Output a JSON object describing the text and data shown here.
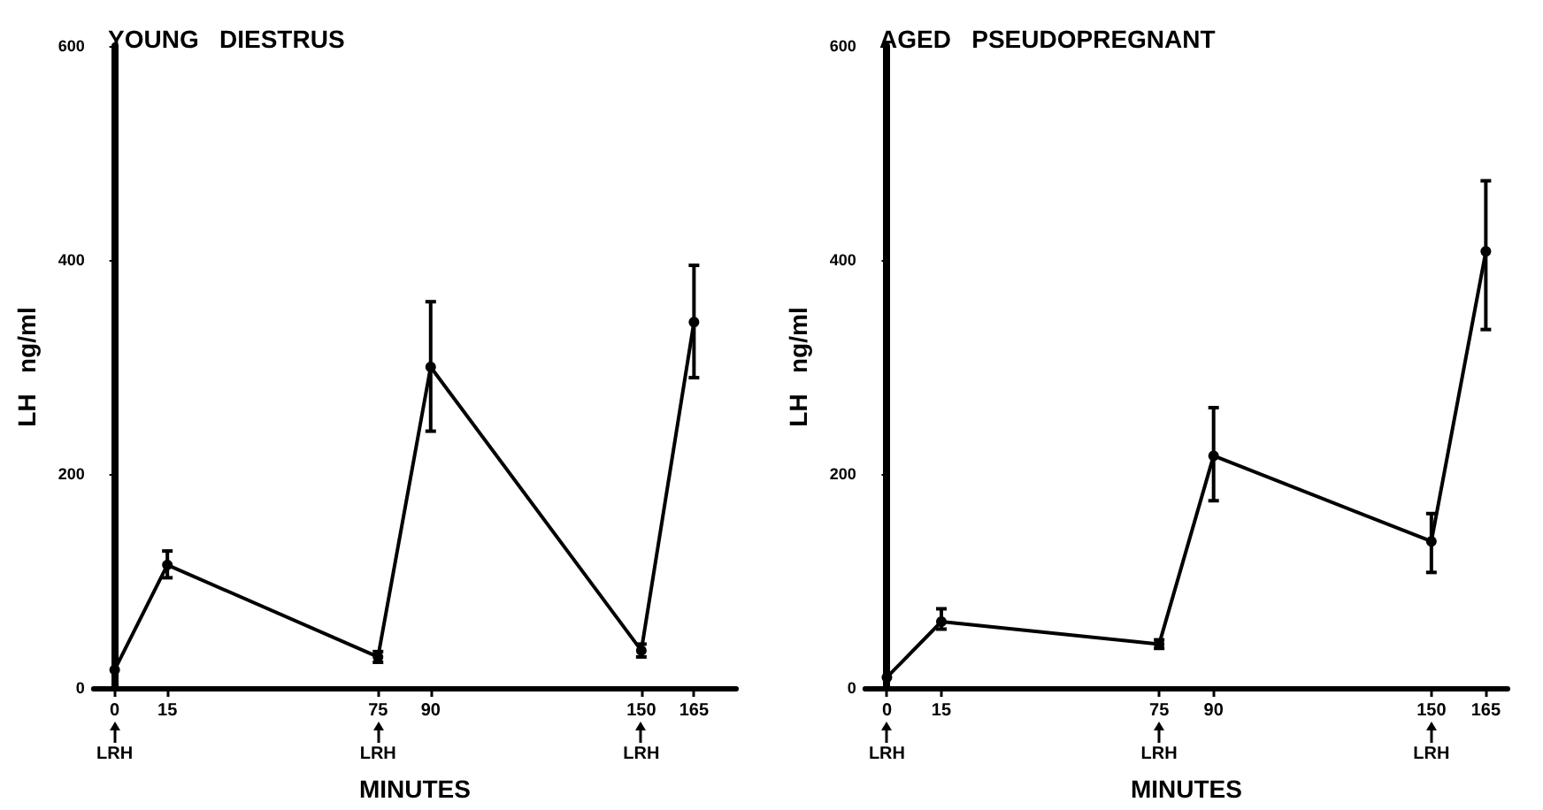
{
  "chart_data": [
    {
      "type": "line",
      "title": "YOUNG   DIESTRUS",
      "xlabel": "MINUTES",
      "ylabel": "LH   ng/ml",
      "x": [
        0,
        15,
        75,
        90,
        150,
        165
      ],
      "xlim": [
        -6,
        177
      ],
      "xticks": [
        0,
        15,
        75,
        90,
        150,
        165
      ],
      "ylim": [
        0,
        600
      ],
      "yticks": [
        0,
        200,
        400,
        600
      ],
      "grid": false,
      "marker": "circle",
      "line_style": "solid",
      "series": [
        {
          "color": "#000000",
          "values": [
            17,
            115,
            29,
            300,
            35,
            342
          ],
          "errors": [
            null,
            [
              103,
              128
            ],
            [
              24,
              34
            ],
            [
              240,
              361
            ],
            [
              29,
              41
            ],
            [
              290,
              395
            ]
          ]
        }
      ],
      "annotations": [
        "LRH",
        "LRH",
        "LRH"
      ]
    },
    {
      "type": "line",
      "title": "AGED   PSEUDOPREGNANT",
      "xlabel": "MINUTES",
      "ylabel": "LH   ng/ml",
      "x": [
        0,
        15,
        75,
        90,
        150,
        165
      ],
      "xlim": [
        -6,
        171
      ],
      "xticks": [
        0,
        15,
        75,
        90,
        150,
        165
      ],
      "ylim": [
        0,
        600
      ],
      "yticks": [
        0,
        200,
        400,
        600
      ],
      "grid": false,
      "marker": "circle",
      "line_style": "solid",
      "series": [
        {
          "color": "#000000",
          "values": [
            10,
            62,
            41,
            217,
            137,
            408
          ],
          "errors": [
            null,
            [
              55,
              74
            ],
            [
              37,
              45
            ],
            [
              175,
              262
            ],
            [
              108,
              163
            ],
            [
              335,
              474
            ]
          ]
        }
      ],
      "annotations": [
        "LRH",
        "LRH",
        "LRH"
      ]
    }
  ]
}
